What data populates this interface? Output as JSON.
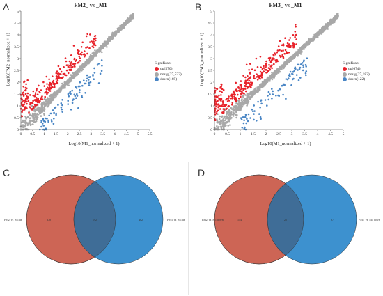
{
  "panels": {
    "A": {
      "letter": "A",
      "title": "FM2_ vs _M1",
      "xlabel": "Log10(M1_normalized + 1)",
      "ylabel": "Log10(FM2_normalized + 1)",
      "legend": {
        "title": "Significant",
        "items": [
          {
            "label": "up(570)",
            "color": "#e8222a"
          },
          {
            "label": "nosig(27,533)",
            "color": "#a8a8a8"
          },
          {
            "label": "down(169)",
            "color": "#4a86c5"
          }
        ]
      }
    },
    "B": {
      "letter": "B",
      "title": "FM3_ vs _M1",
      "xlabel": "Log10(M1_normalized + 1)",
      "ylabel": "Log10(FM3_normalized + 1)",
      "legend": {
        "title": "Significant",
        "items": [
          {
            "label": "up(674)",
            "color": "#e8222a"
          },
          {
            "label": "nosig(27,182)",
            "color": "#a8a8a8"
          },
          {
            "label": "down(122)",
            "color": "#4a86c5"
          }
        ]
      }
    },
    "C": {
      "letter": "C",
      "left_set": "FM2_vs_M1 up",
      "right_set": "FM3_vs_M1 up",
      "left_only": "378",
      "overlap": "192",
      "right_only": "482"
    },
    "D": {
      "letter": "D",
      "left_set": "FM2_vs_M1 down",
      "right_set": "FM3_vs_M1 down",
      "left_only": "144",
      "overlap": "25",
      "right_only": "97"
    }
  },
  "colors": {
    "up": "#e8222a",
    "nosig": "#a8a8a8",
    "down": "#4a86c5",
    "venn_left": "#cd6555",
    "venn_right": "#3d91cf",
    "venn_overlap": "#3f6d97"
  },
  "chart_data": [
    {
      "type": "scatter",
      "title": "FM2_ vs _M1",
      "xlabel": "Log10(M1_normalized + 1)",
      "ylabel": "Log10(FM2_normalized + 1)",
      "xlim": [
        0,
        5.5
      ],
      "ylim": [
        0,
        5
      ],
      "xticks": [
        "0",
        "0.5",
        "1",
        "1.5",
        "2",
        "2.5",
        "3",
        "3.5",
        "4",
        "4.5",
        "5",
        "5.5"
      ],
      "yticks": [
        "0",
        "0.5",
        "1",
        "1.5",
        "2",
        "2.5",
        "3",
        "3.5",
        "4",
        "4.5",
        "5"
      ],
      "series": [
        {
          "name": "up(570)",
          "count": 570
        },
        {
          "name": "nosig(27,533)",
          "count": 27533
        },
        {
          "name": "down(169)",
          "count": 169
        }
      ]
    },
    {
      "type": "scatter",
      "title": "FM3_ vs _M1",
      "xlabel": "Log10(M1_normalized + 1)",
      "ylabel": "Log10(FM3_normalized + 1)",
      "xlim": [
        0,
        5
      ],
      "ylim": [
        0,
        5
      ],
      "xticks": [
        "0",
        "0.5",
        "1",
        "1.5",
        "2",
        "2.5",
        "3",
        "3.5",
        "4",
        "4.5",
        "5"
      ],
      "yticks": [
        "0",
        "0.5",
        "1",
        "1.5",
        "2",
        "2.5",
        "3",
        "3.5",
        "4",
        "4.5",
        "5"
      ],
      "series": [
        {
          "name": "up(674)",
          "count": 674
        },
        {
          "name": "nosig(27,182)",
          "count": 27182
        },
        {
          "name": "down(122)",
          "count": 122
        }
      ]
    }
  ]
}
